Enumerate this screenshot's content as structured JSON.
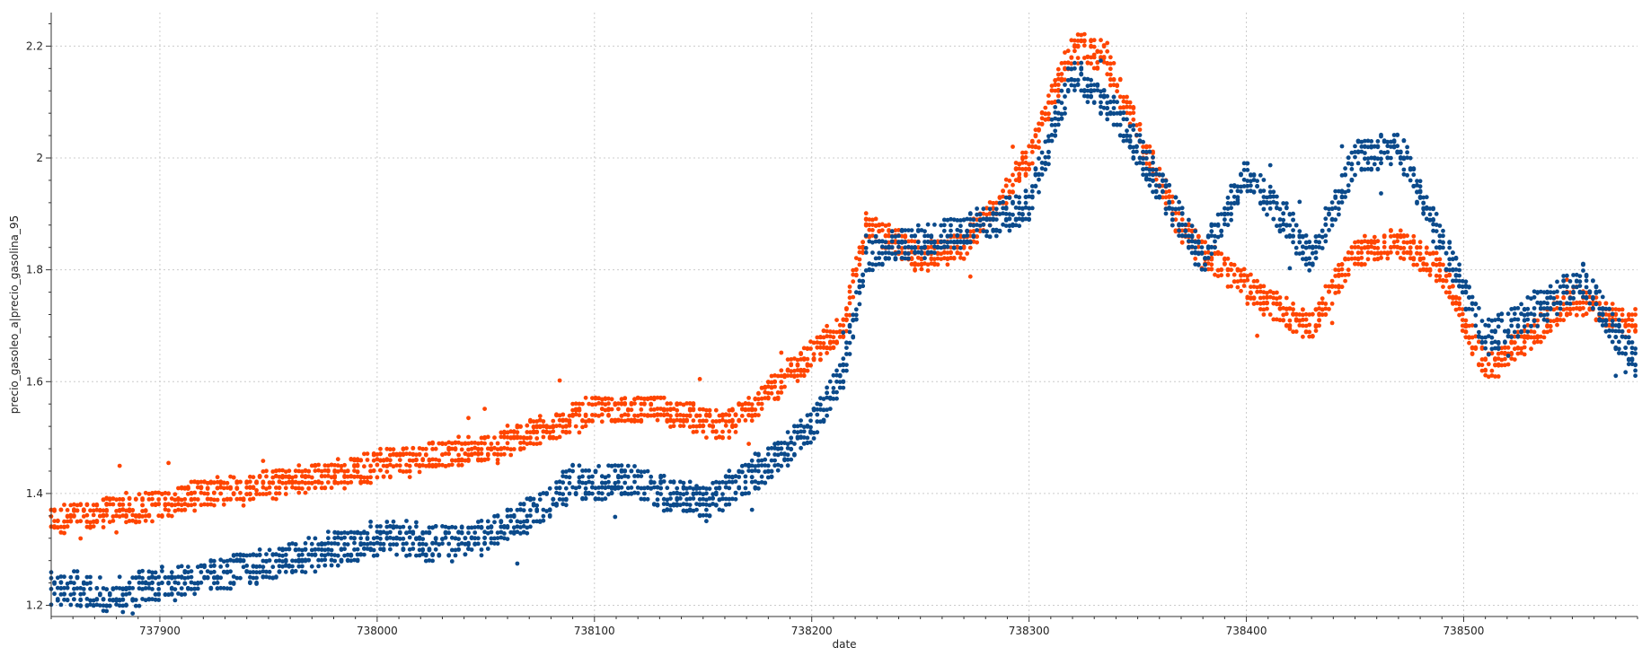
{
  "chart_data": {
    "type": "scatter",
    "xlabel": "date",
    "ylabel": "precio_gasoleo_a|precio_gasolina_95",
    "xlim": [
      737850,
      738580
    ],
    "ylim": [
      1.18,
      2.26
    ],
    "xticks": [
      737900,
      738000,
      738100,
      738200,
      738300,
      738400,
      738500
    ],
    "xtick_labels": [
      "737900",
      "738000",
      "738100",
      "738200",
      "738300",
      "738400",
      "738500"
    ],
    "yticks": [
      1.2,
      1.4,
      1.6,
      1.8,
      2.0,
      2.2
    ],
    "ytick_labels": [
      "1.2",
      "1.4",
      "1.6",
      "1.8",
      "2",
      "2.2"
    ],
    "grid": true,
    "series": [
      {
        "color": "#ff4500",
        "trend": [
          [
            737850,
            1.35
          ],
          [
            737880,
            1.37
          ],
          [
            737900,
            1.38
          ],
          [
            737920,
            1.4
          ],
          [
            737960,
            1.42
          ],
          [
            738000,
            1.45
          ],
          [
            738050,
            1.48
          ],
          [
            738080,
            1.52
          ],
          [
            738100,
            1.55
          ],
          [
            738130,
            1.55
          ],
          [
            738160,
            1.52
          ],
          [
            738180,
            1.58
          ],
          [
            738200,
            1.65
          ],
          [
            738215,
            1.7
          ],
          [
            738225,
            1.88
          ],
          [
            738250,
            1.82
          ],
          [
            738270,
            1.84
          ],
          [
            738300,
            2.0
          ],
          [
            738320,
            2.2
          ],
          [
            738335,
            2.18
          ],
          [
            738350,
            2.05
          ],
          [
            738370,
            1.87
          ],
          [
            738390,
            1.8
          ],
          [
            738410,
            1.74
          ],
          [
            738430,
            1.7
          ],
          [
            738450,
            1.83
          ],
          [
            738470,
            1.85
          ],
          [
            738490,
            1.8
          ],
          [
            738510,
            1.62
          ],
          [
            738530,
            1.68
          ],
          [
            738550,
            1.75
          ],
          [
            738580,
            1.7
          ]
        ],
        "spread": 0.025
      },
      {
        "color": "#0b4a8b",
        "trend": [
          [
            737850,
            1.23
          ],
          [
            737880,
            1.22
          ],
          [
            737900,
            1.24
          ],
          [
            737920,
            1.25
          ],
          [
            737960,
            1.28
          ],
          [
            738000,
            1.32
          ],
          [
            738040,
            1.31
          ],
          [
            738070,
            1.36
          ],
          [
            738090,
            1.42
          ],
          [
            738120,
            1.42
          ],
          [
            738150,
            1.38
          ],
          [
            738180,
            1.45
          ],
          [
            738200,
            1.52
          ],
          [
            738215,
            1.62
          ],
          [
            738225,
            1.83
          ],
          [
            738250,
            1.85
          ],
          [
            738280,
            1.88
          ],
          [
            738300,
            1.92
          ],
          [
            738320,
            2.15
          ],
          [
            738340,
            2.08
          ],
          [
            738360,
            1.95
          ],
          [
            738380,
            1.82
          ],
          [
            738400,
            1.97
          ],
          [
            738420,
            1.88
          ],
          [
            738430,
            1.82
          ],
          [
            738450,
            2.0
          ],
          [
            738470,
            2.02
          ],
          [
            738490,
            1.85
          ],
          [
            738510,
            1.68
          ],
          [
            738530,
            1.72
          ],
          [
            738555,
            1.78
          ],
          [
            738580,
            1.63
          ]
        ],
        "spread": 0.03
      }
    ]
  }
}
